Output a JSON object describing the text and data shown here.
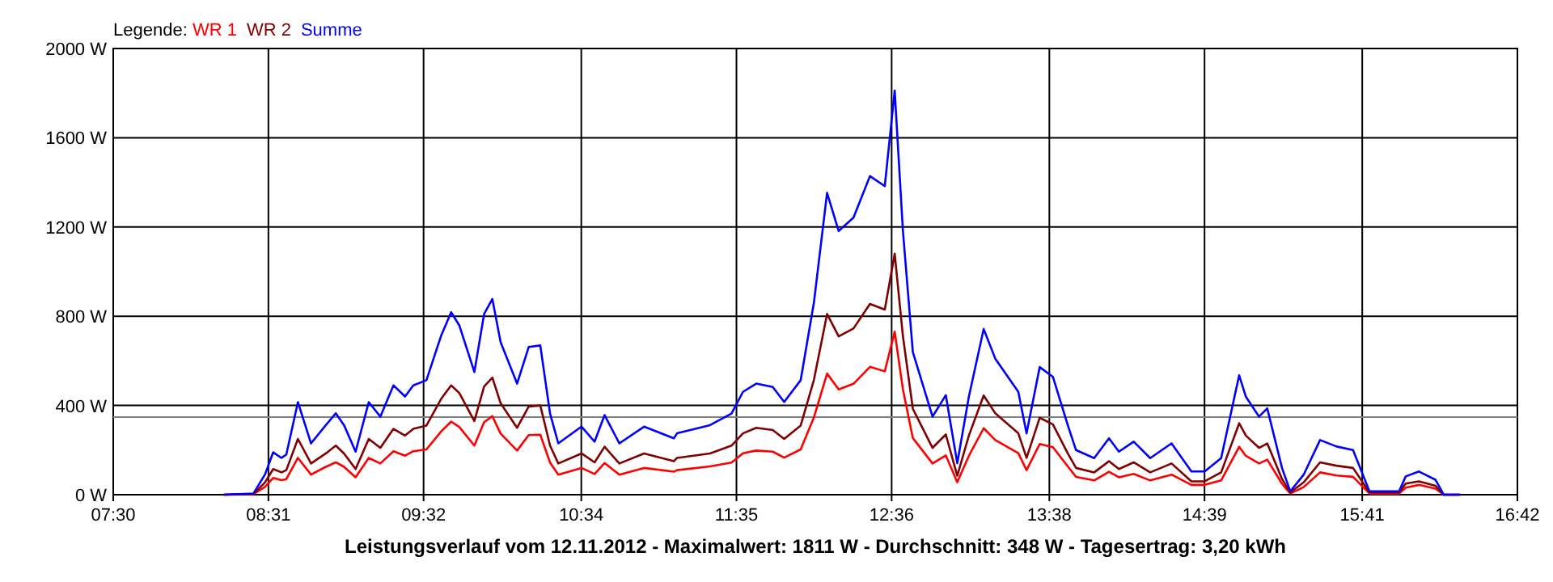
{
  "chart_data": {
    "type": "line",
    "xlabel": "Leistungsverlauf vom 12.11.2012 - Maximalwert: 1811 W - Durchschnitt: 348 W - Tagesertrag: 3,20 kWh",
    "legend_title": "Legende:",
    "legend": "top left",
    "grid": true,
    "marker": "none",
    "line_style": "solid",
    "x": [
      8.224,
      8.418,
      8.494,
      8.548,
      8.602,
      8.634,
      8.71,
      8.796,
      8.893,
      8.958,
      9.012,
      9.088,
      9.174,
      9.25,
      9.336,
      9.412,
      9.466,
      9.552,
      9.649,
      9.714,
      9.768,
      9.866,
      9.93,
      9.984,
      10.038,
      10.146,
      10.222,
      10.298,
      10.362,
      10.416,
      10.568,
      10.654,
      10.719,
      10.816,
      10.978,
      11.173,
      11.194,
      11.41,
      11.551,
      11.626,
      11.713,
      11.821,
      11.896,
      12.004,
      12.091,
      12.177,
      12.253,
      12.35,
      12.458,
      12.555,
      12.62,
      12.674,
      12.739,
      12.868,
      12.955,
      13.03,
      13.106,
      13.203,
      13.279,
      13.43,
      13.484,
      13.57,
      13.657,
      13.754,
      13.808,
      13.927,
      14.024,
      14.089,
      14.186,
      14.294,
      14.434,
      14.564,
      14.651,
      14.759,
      14.877,
      14.921,
      15.007,
      15.061,
      15.158,
      15.212,
      15.299,
      15.407,
      15.515,
      15.623,
      15.731,
      15.925,
      15.968,
      16.055,
      16.163,
      16.217,
      16.325
    ],
    "series": [
      {
        "name": "WR 1",
        "color": "#ff0000",
        "values": [
          0,
          2,
          35,
          75,
          65,
          70,
          165,
          90,
          125,
          145,
          125,
          78,
          165,
          140,
          195,
          175,
          195,
          203,
          284,
          328,
          303,
          220,
          325,
          352,
          274,
          198,
          267,
          269,
          144,
          90,
          120,
          93,
          142,
          90,
          120,
          103,
          110,
          127,
          144,
          186,
          198,
          193,
          166,
          203,
          347,
          543,
          472,
          497,
          573,
          553,
          731,
          472,
          254,
          140,
          176,
          56,
          174,
          298,
          245,
          186,
          110,
          227,
          213,
          127,
          80,
          64,
          103,
          78,
          93,
          64,
          90,
          44,
          44,
          64,
          215,
          174,
          140,
          157,
          49,
          5,
          34,
          100,
          86,
          80,
          5,
          5,
          32,
          44,
          27,
          0,
          0
        ]
      },
      {
        "name": "WR 2",
        "color": "#800000",
        "values": [
          0,
          3,
          55,
          115,
          100,
          110,
          250,
          140,
          185,
          220,
          185,
          115,
          250,
          210,
          295,
          265,
          295,
          310,
          430,
          490,
          455,
          330,
          485,
          525,
          410,
          300,
          395,
          400,
          220,
          140,
          185,
          145,
          215,
          140,
          185,
          150,
          165,
          185,
          220,
          275,
          300,
          290,
          250,
          310,
          515,
          810,
          710,
          745,
          855,
          830,
          1080,
          710,
          385,
          210,
          270,
          85,
          265,
          445,
          365,
          275,
          165,
          345,
          315,
          185,
          120,
          100,
          150,
          115,
          145,
          100,
          140,
          60,
          60,
          100,
          320,
          265,
          210,
          230,
          70,
          10,
          55,
          145,
          130,
          120,
          10,
          10,
          50,
          60,
          40,
          0,
          0
        ]
      },
      {
        "name": "Summe",
        "color": "#0000ff",
        "values": [
          0,
          5,
          90,
          190,
          165,
          180,
          415,
          230,
          312,
          365,
          312,
          193,
          415,
          350,
          490,
          440,
          490,
          513,
          714,
          818,
          758,
          550,
          810,
          877,
          684,
          498,
          662,
          669,
          364,
          230,
          305,
          238,
          357,
          230,
          305,
          253,
          275,
          312,
          364,
          461,
          498,
          483,
          416,
          513,
          862,
          1353,
          1182,
          1242,
          1428,
          1383,
          1811,
          1182,
          639,
          350,
          446,
          141,
          439,
          743,
          610,
          461,
          275,
          572,
          528,
          312,
          200,
          164,
          253,
          193,
          238,
          164,
          230,
          104,
          104,
          164,
          535,
          439,
          350,
          387,
          119,
          15,
          89,
          245,
          216,
          200,
          15,
          15,
          82,
          104,
          67,
          0,
          0
        ]
      }
    ],
    "xlim": [
      7.5,
      16.7
    ],
    "xticks": [
      {
        "value": 7.5,
        "label": "07:30"
      },
      {
        "value": 8.5167,
        "label": "08:31"
      },
      {
        "value": 9.5333,
        "label": "09:32"
      },
      {
        "value": 10.5667,
        "label": "10:34"
      },
      {
        "value": 11.5833,
        "label": "11:35"
      },
      {
        "value": 12.6,
        "label": "12:36"
      },
      {
        "value": 13.6333,
        "label": "13:38"
      },
      {
        "value": 14.65,
        "label": "14:39"
      },
      {
        "value": 15.6833,
        "label": "15:41"
      },
      {
        "value": 16.7,
        "label": "16:42"
      }
    ],
    "ylim": [
      0,
      2000
    ],
    "yticks": [
      {
        "value": 0,
        "label": "0 W"
      },
      {
        "value": 400,
        "label": "400 W"
      },
      {
        "value": 800,
        "label": "800 W"
      },
      {
        "value": 1200,
        "label": "1200 W"
      },
      {
        "value": 1600,
        "label": "1600 W"
      },
      {
        "value": 2000,
        "label": "2000 W"
      }
    ],
    "ref_lines": [
      {
        "axis": "y",
        "value": 348,
        "color": "#808080"
      }
    ]
  }
}
